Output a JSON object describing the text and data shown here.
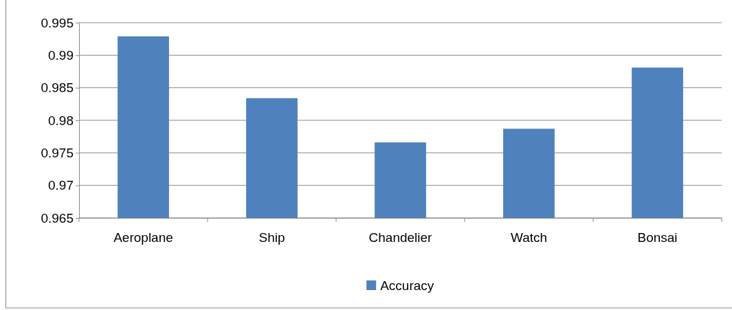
{
  "chart_data": {
    "type": "bar",
    "categories": [
      "Aeroplane",
      "Ship",
      "Chandelier",
      "Watch",
      "Bonsai"
    ],
    "series": [
      {
        "name": "Accuracy",
        "color": "#4f81bd",
        "values": [
          0.9929,
          0.9834,
          0.9766,
          0.9787,
          0.9881
        ]
      }
    ],
    "ylim": [
      0.965,
      0.995
    ],
    "yticks": [
      0.965,
      0.97,
      0.975,
      0.98,
      0.985,
      0.99,
      0.995
    ],
    "grid": "y",
    "legend": "bottom"
  }
}
